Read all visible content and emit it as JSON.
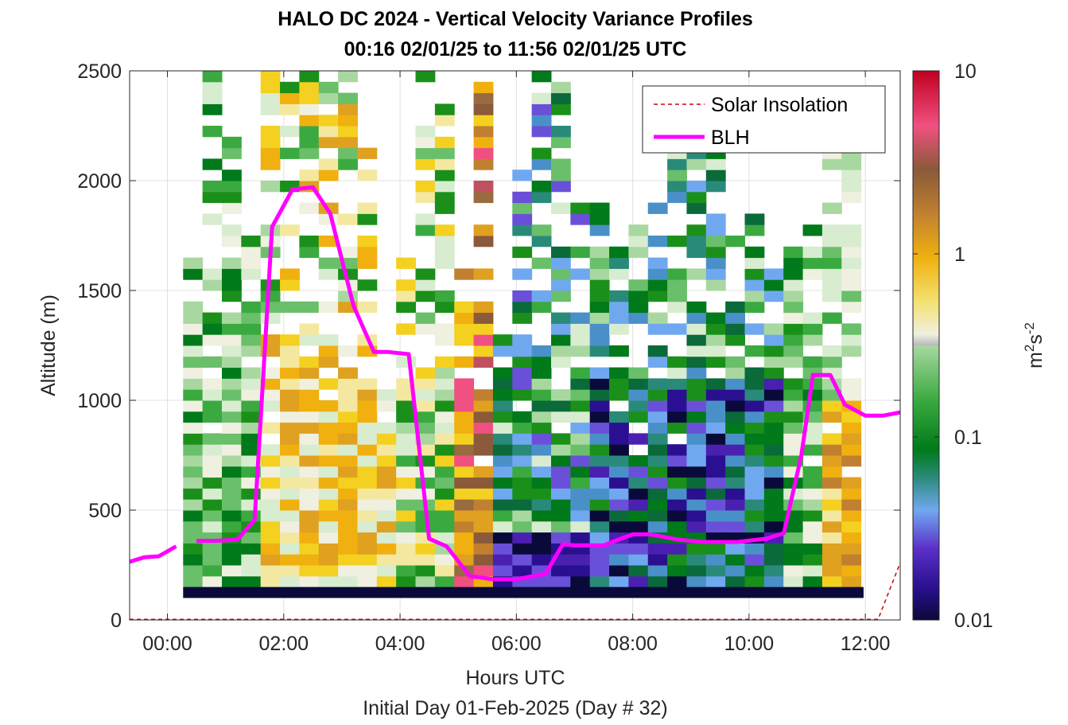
{
  "title": "HALO DC 2024 - Vertical Velocity Variance Profiles",
  "subtitle": "00:16 02/01/25 to 11:56 02/01/25  UTC",
  "xlabel": "Hours UTC",
  "xlabel2": "Initial Day 01-Feb-2025 (Day # 32)",
  "ylabel": "Altitude (m)",
  "colorbar": {
    "label_base": "m",
    "label_sup1": "2",
    "label_mid": "s",
    "label_sup2": "-2",
    "ticks": [
      "0.01",
      "0.1",
      "1",
      "10"
    ],
    "scale": "log",
    "range": [
      0.01,
      10
    ]
  },
  "chart_data": {
    "type": "heatmap",
    "title": "HALO DC 2024 - Vertical Velocity Variance Profiles",
    "xlabel": "Hours UTC",
    "ylabel": "Altitude (m)",
    "xlim": [
      -0.65,
      12.6
    ],
    "ylim": [
      0,
      2500
    ],
    "x_ticks": [
      "00:00",
      "02:00",
      "04:00",
      "06:00",
      "08:00",
      "10:00",
      "12:00"
    ],
    "x_tick_values": [
      0,
      2,
      4,
      6,
      8,
      10,
      12
    ],
    "y_ticks": [
      "0",
      "500",
      "1000",
      "1500",
      "2000",
      "2500"
    ],
    "y_tick_values": [
      0,
      500,
      1000,
      1500,
      2000,
      2500
    ],
    "grid": true,
    "legend_position": "top-right",
    "legend": [
      "Solar Insolation",
      "BLH"
    ],
    "heatmap_x_range": [
      0.27,
      11.97
    ],
    "heatmap_x_step": 0.333,
    "heatmap_y_step": 50,
    "heatmap_bottom_row_altitude": 125,
    "heatmap_bottom_row_value": 0.01,
    "series": [
      {
        "name": "BLH",
        "color": "#ff00ff",
        "segments": [
          [
            [
              -0.65,
              265
            ],
            [
              -0.4,
              285
            ],
            [
              -0.15,
              290
            ],
            [
              0.15,
              335
            ]
          ],
          [
            [
              0.5,
              360
            ],
            [
              0.8,
              360
            ],
            [
              1.2,
              365
            ],
            [
              1.5,
              455
            ],
            [
              1.8,
              1790
            ],
            [
              2.15,
              1960
            ],
            [
              2.5,
              1970
            ],
            [
              2.8,
              1850
            ],
            [
              3.2,
              1430
            ],
            [
              3.55,
              1220
            ],
            [
              3.8,
              1220
            ],
            [
              4.15,
              1210
            ],
            [
              4.5,
              370
            ],
            [
              4.8,
              335
            ],
            [
              5.2,
              200
            ],
            [
              5.6,
              185
            ],
            [
              6.0,
              185
            ],
            [
              6.5,
              210
            ],
            [
              6.8,
              345
            ],
            [
              7.0,
              340
            ],
            [
              7.5,
              340
            ],
            [
              8.0,
              390
            ],
            [
              8.3,
              390
            ],
            [
              8.8,
              365
            ],
            [
              9.2,
              355
            ],
            [
              9.8,
              355
            ],
            [
              10.3,
              370
            ],
            [
              10.6,
              395
            ],
            [
              10.9,
              750
            ],
            [
              11.1,
              1115
            ],
            [
              11.4,
              1115
            ],
            [
              11.65,
              980
            ],
            [
              12.0,
              930
            ],
            [
              12.3,
              930
            ],
            [
              12.6,
              945
            ]
          ]
        ]
      },
      {
        "name": "Solar Insolation",
        "color": "#d00000",
        "segments": [
          [
            [
              -0.65,
              3
            ],
            [
              12.22,
              3
            ],
            [
              12.6,
              260
            ]
          ]
        ]
      }
    ]
  }
}
